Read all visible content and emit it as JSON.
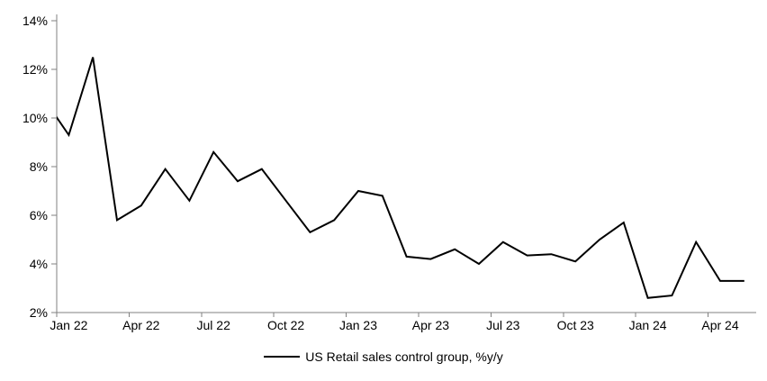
{
  "chart_data": {
    "type": "line",
    "title": "",
    "legend_position": "bottom-center",
    "grid": false,
    "colors": {
      "line": "#000000",
      "axis": "#808080",
      "text": "#000000",
      "background": "#ffffff"
    },
    "ylim": [
      2,
      14
    ],
    "ytick_values": [
      2,
      4,
      6,
      8,
      10,
      12,
      14
    ],
    "ytick_labels": [
      "2%",
      "4%",
      "6%",
      "8%",
      "10%",
      "12%",
      "14%"
    ],
    "xtick_labels": [
      "Jan 22",
      "Apr 22",
      "Jul 22",
      "Oct 22",
      "Jan 23",
      "Apr 23",
      "Jul 23",
      "Oct 23",
      "Jan 24",
      "Apr 24"
    ],
    "xtick_interval_months": 3,
    "x": [
      "Dec 21",
      "Jan 22",
      "Feb 22",
      "Mar 22",
      "Apr 22",
      "May 22",
      "Jun 22",
      "Jul 22",
      "Aug 22",
      "Sep 22",
      "Oct 22",
      "Nov 22",
      "Dec 22",
      "Jan 23",
      "Feb 23",
      "Mar 23",
      "Apr 23",
      "May 23",
      "Jun 23",
      "Jul 23",
      "Aug 23",
      "Sep 23",
      "Oct 23",
      "Nov 23",
      "Dec 23",
      "Jan 24",
      "Feb 24",
      "Mar 24",
      "Apr 24",
      "May 24"
    ],
    "series": [
      {
        "name": "US Retail sales control group, %y/y",
        "values": [
          10.75,
          9.3,
          12.5,
          5.8,
          6.4,
          7.9,
          6.6,
          8.6,
          7.4,
          7.9,
          6.6,
          5.3,
          5.8,
          7.0,
          6.8,
          4.3,
          4.2,
          4.6,
          4.0,
          4.9,
          4.35,
          4.4,
          4.1,
          5.0,
          5.7,
          2.6,
          2.7,
          4.9,
          3.3,
          3.3
        ]
      }
    ],
    "clipping_note": "First listed point (Dec 21) lies left of the x-axis start; its segment is clipped at the plot edge so the drawn line begins on the y-axis at ~10%."
  }
}
